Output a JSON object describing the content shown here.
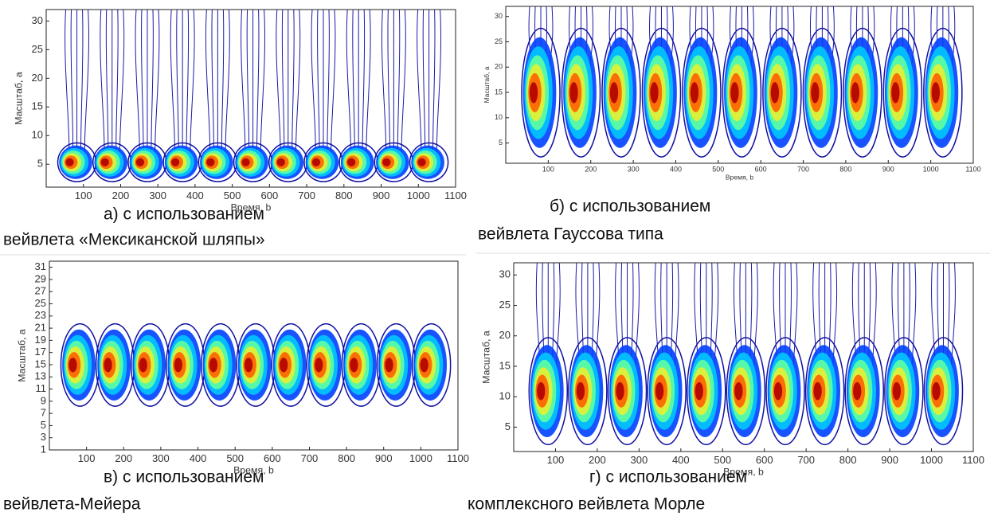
{
  "chart_data": [
    {
      "type": "heatmap",
      "xlabel": "Время, b",
      "ylabel": "Масштаб, а",
      "xlim": [
        0,
        1100
      ],
      "ylim": [
        1,
        32
      ],
      "xticks": [
        100,
        200,
        300,
        400,
        500,
        600,
        700,
        800,
        900,
        1000,
        1100
      ],
      "yticks": [
        5,
        10,
        15,
        20,
        25,
        30
      ]
    },
    {
      "type": "heatmap",
      "xlabel": "Время, b",
      "ylabel": "Масштаб, а",
      "xlim": [
        0,
        1100
      ],
      "ylim": [
        1,
        32
      ],
      "xticks": [
        100,
        200,
        300,
        400,
        500,
        600,
        700,
        800,
        900,
        1000,
        1100
      ],
      "yticks": [
        5,
        10,
        15,
        20,
        25,
        30
      ]
    },
    {
      "type": "heatmap",
      "xlabel": "Время, b",
      "ylabel": "Масштаб, а",
      "xlim": [
        0,
        1100
      ],
      "ylim": [
        1,
        32
      ],
      "xticks": [
        100,
        200,
        300,
        400,
        500,
        600,
        700,
        800,
        900,
        1000,
        1100
      ],
      "yticks": [
        1,
        3,
        5,
        7,
        9,
        11,
        13,
        15,
        17,
        19,
        21,
        23,
        25,
        27,
        29,
        31
      ]
    },
    {
      "type": "heatmap",
      "xlabel": "Время, b",
      "ylabel": "Масштаб, а",
      "xlim": [
        0,
        1100
      ],
      "ylim": [
        1,
        32
      ],
      "xticks": [
        100,
        200,
        300,
        400,
        500,
        600,
        700,
        800,
        900,
        1000,
        1100
      ],
      "yticks": [
        5,
        10,
        15,
        20,
        25,
        30
      ]
    }
  ],
  "captions": [
    [
      "а) с использованием",
      "вейвлета «Мексиканской шляпы»"
    ],
    [
      "б) с использованием",
      "вейвлета Гауссова типа"
    ],
    [
      "в) с использованием",
      "вейвлета-Мейера"
    ],
    [
      "г) с использованием",
      "комплексного вейвлета Морле"
    ]
  ]
}
